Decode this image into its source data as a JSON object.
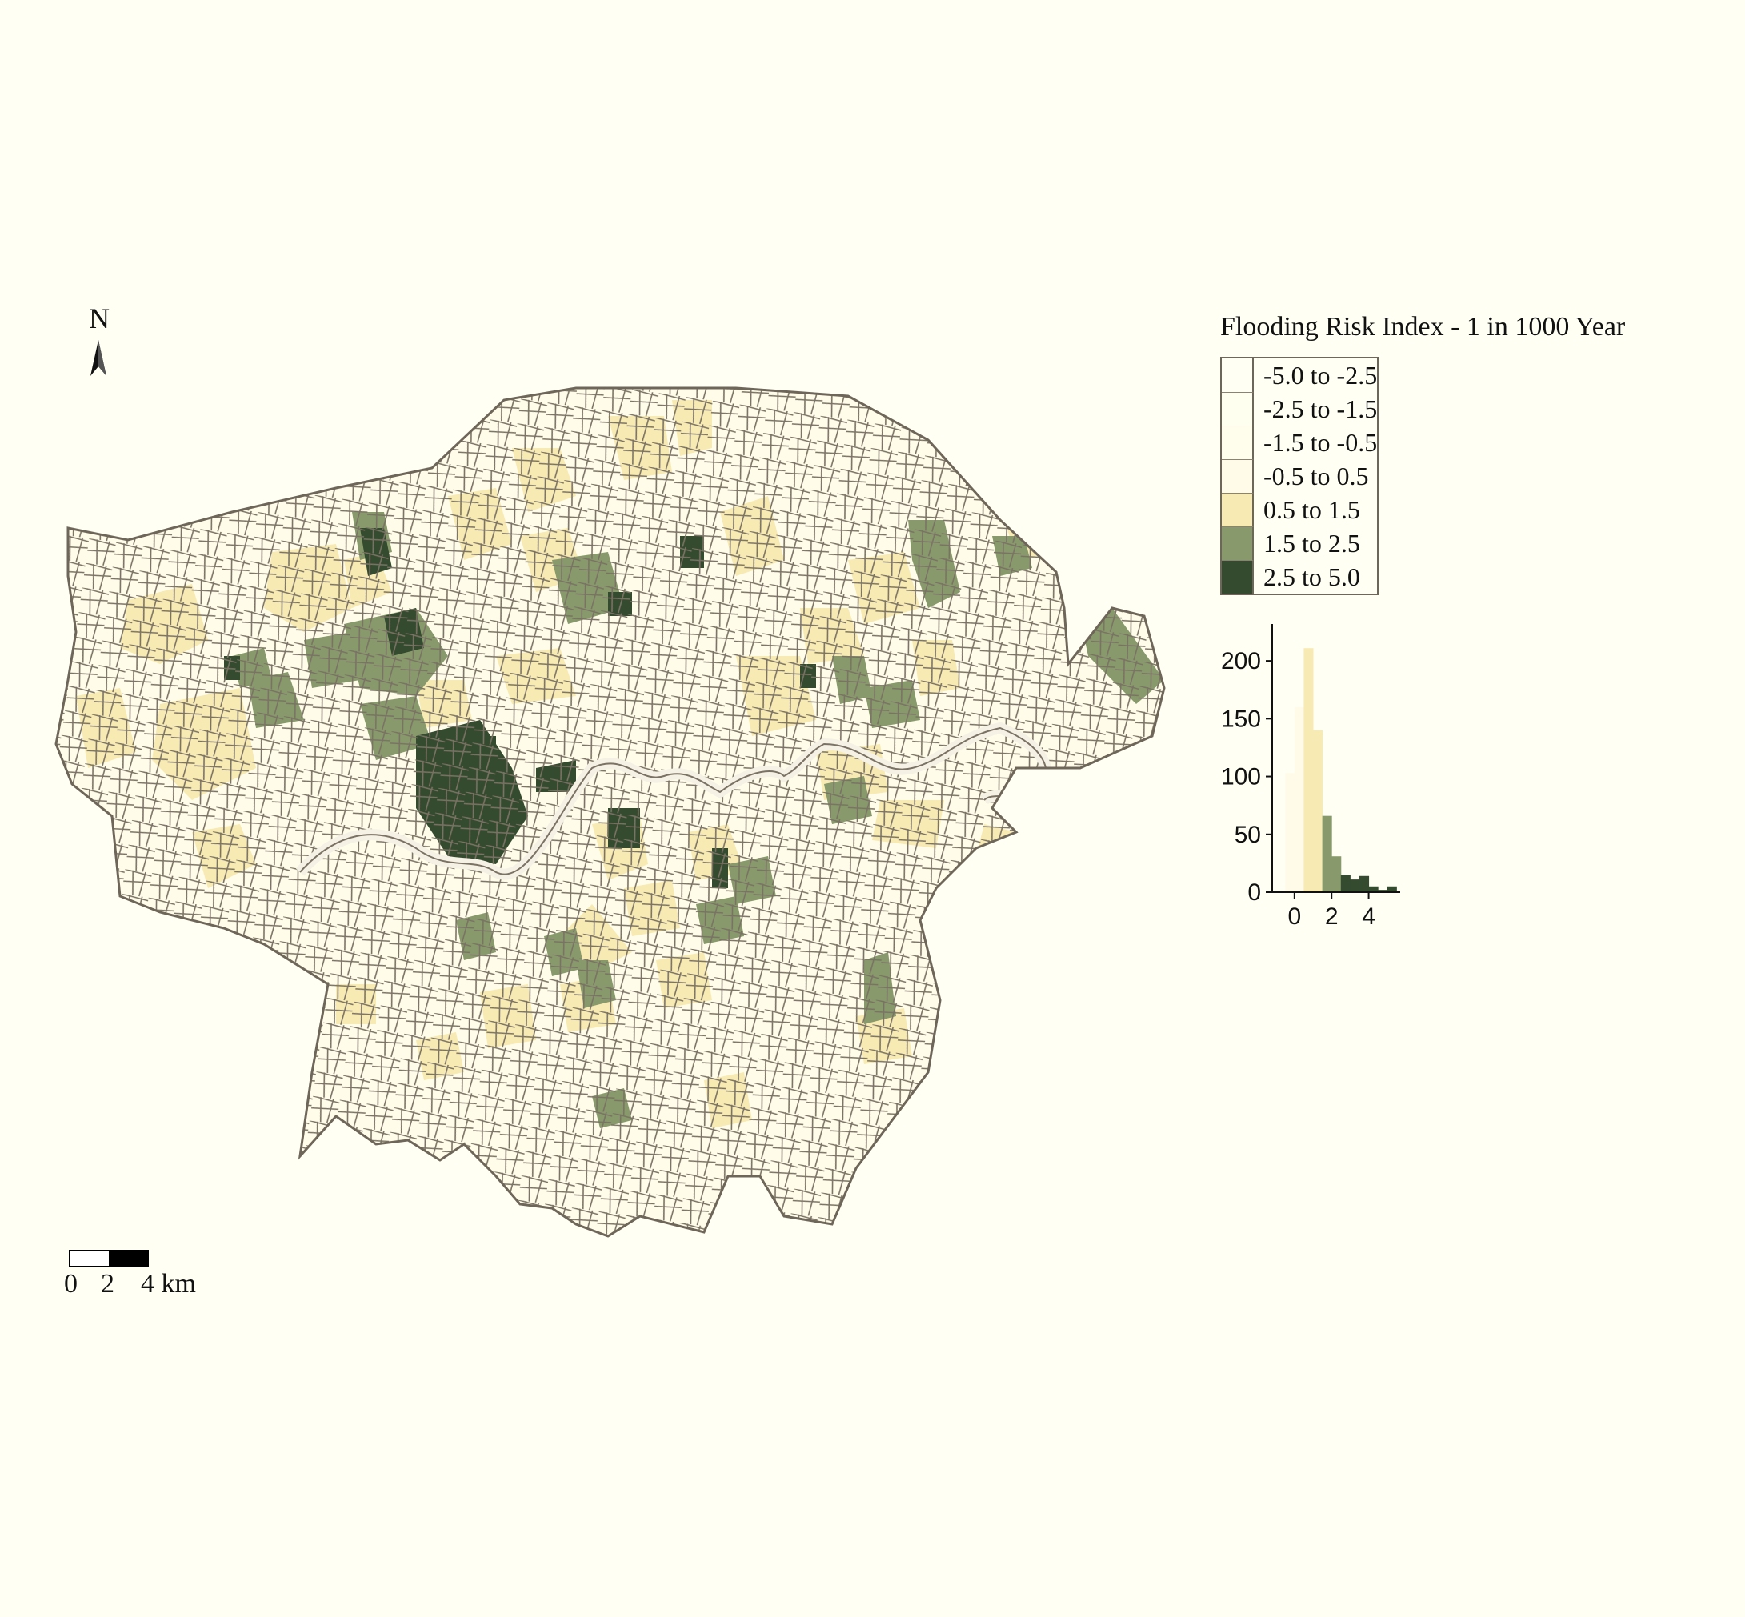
{
  "north_arrow": {
    "label": "N"
  },
  "legend": {
    "title": "Flooding Risk Index - 1 in 1000 Year",
    "classes": [
      {
        "label": "-5.0 to -2.5",
        "color": "#fffff4"
      },
      {
        "label": "-2.5 to -1.5",
        "color": "#fffff0"
      },
      {
        "label": "-1.5 to -0.5",
        "color": "#fffdec"
      },
      {
        "label": "-0.5 to 0.5",
        "color": "#fffbe8"
      },
      {
        "label": "0.5 to 1.5",
        "color": "#f8eab3"
      },
      {
        "label": "1.5 to 2.5",
        "color": "#889a6c"
      },
      {
        "label": "2.5 to 5.0",
        "color": "#354b30"
      }
    ]
  },
  "chart_data": {
    "type": "bar",
    "title": "",
    "xlabel": "",
    "ylabel": "",
    "xlim": [
      -1.2,
      5.7
    ],
    "ylim": [
      0,
      225
    ],
    "x_ticks": [
      0,
      2,
      4
    ],
    "y_ticks": [
      0,
      50,
      100,
      150,
      200
    ],
    "bin_width": 0.5,
    "bins": [
      {
        "x0": -1.0,
        "value": 32,
        "color": "#fffff4"
      },
      {
        "x0": -0.5,
        "value": 103,
        "color": "#fffbe8"
      },
      {
        "x0": 0.0,
        "value": 160,
        "color": "#fffbe8"
      },
      {
        "x0": 0.5,
        "value": 211,
        "color": "#f8eab3"
      },
      {
        "x0": 1.0,
        "value": 140,
        "color": "#f8eab3"
      },
      {
        "x0": 1.5,
        "value": 66,
        "color": "#889a6c"
      },
      {
        "x0": 2.0,
        "value": 31,
        "color": "#889a6c"
      },
      {
        "x0": 2.5,
        "value": 15,
        "color": "#354b30"
      },
      {
        "x0": 3.0,
        "value": 11,
        "color": "#354b30"
      },
      {
        "x0": 3.5,
        "value": 14,
        "color": "#354b30"
      },
      {
        "x0": 4.0,
        "value": 5,
        "color": "#354b30"
      },
      {
        "x0": 4.5,
        "value": 2,
        "color": "#354b30"
      },
      {
        "x0": 5.0,
        "value": 5,
        "color": "#354b30"
      }
    ]
  },
  "scale_bar": {
    "labels": [
      "0",
      "2",
      "4 km"
    ]
  }
}
